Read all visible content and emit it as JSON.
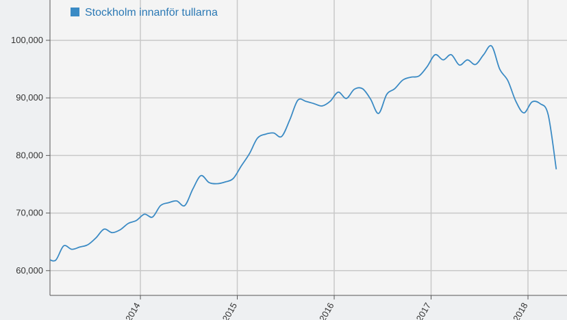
{
  "chart_data": {
    "type": "line",
    "x": [
      2013.042,
      2013.125,
      2013.208,
      2013.292,
      2013.375,
      2013.458,
      2013.542,
      2013.625,
      2013.708,
      2013.792,
      2013.875,
      2013.958,
      2014.042,
      2014.125,
      2014.208,
      2014.292,
      2014.375,
      2014.458,
      2014.542,
      2014.625,
      2014.708,
      2014.792,
      2014.875,
      2014.958,
      2015.042,
      2015.125,
      2015.208,
      2015.292,
      2015.375,
      2015.458,
      2015.542,
      2015.625,
      2015.708,
      2015.792,
      2015.875,
      2015.958,
      2016.042,
      2016.125,
      2016.208,
      2016.292,
      2016.375,
      2016.458,
      2016.542,
      2016.625,
      2016.708,
      2016.792,
      2016.875,
      2016.958,
      2017.042,
      2017.125,
      2017.208,
      2017.292,
      2017.375,
      2017.458,
      2017.542,
      2017.625,
      2017.708,
      2017.792,
      2017.875,
      2017.958,
      2018.042,
      2018.125,
      2018.208,
      2018.292
    ],
    "series": [
      {
        "name": "Stockholm innanför tullarna",
        "color": "#3a8ac4",
        "values": [
          62100,
          61800,
          64300,
          63700,
          64100,
          64500,
          65700,
          67200,
          66600,
          67100,
          68200,
          68700,
          69800,
          69300,
          71300,
          71800,
          72100,
          71300,
          74200,
          76500,
          75300,
          75100,
          75400,
          76000,
          78200,
          80300,
          83000,
          83700,
          83900,
          83300,
          86200,
          89600,
          89400,
          89000,
          88600,
          89400,
          91000,
          89900,
          91500,
          91600,
          89800,
          87300,
          90600,
          91600,
          93100,
          93600,
          93800,
          95400,
          97500,
          96600,
          97500,
          95700,
          96600,
          95800,
          97500,
          99000,
          95000,
          93000,
          89400,
          87400,
          89300,
          89000,
          87100,
          77600
        ]
      }
    ],
    "xlim": [
      2013.067,
      2018.332
    ],
    "xticks": [
      2014,
      2015,
      2016,
      2017,
      2018
    ],
    "ylim": [
      55700,
      107000
    ],
    "yticks": [
      {
        "value": 60000,
        "label": "60,000"
      },
      {
        "value": 70000,
        "label": "70,000"
      },
      {
        "value": 80000,
        "label": "80,000"
      },
      {
        "value": 90000,
        "label": "90,000"
      },
      {
        "value": 100000,
        "label": "100,000"
      }
    ],
    "grid": true
  }
}
